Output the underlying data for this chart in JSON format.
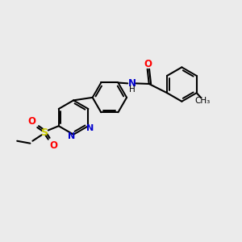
{
  "bg_color": "#ebebeb",
  "bond_color": "#000000",
  "N_color": "#0000cc",
  "O_color": "#ff0000",
  "S_color": "#cccc00",
  "NH_color": "#0000cc",
  "lw": 1.5,
  "lw_double": 1.4,
  "fig_w": 3.0,
  "fig_h": 3.0,
  "dpi": 100,
  "xlim": [
    0,
    10
  ],
  "ylim": [
    0,
    10
  ],
  "ring_r": 0.72,
  "double_off": 0.09,
  "double_shrink": 0.15
}
